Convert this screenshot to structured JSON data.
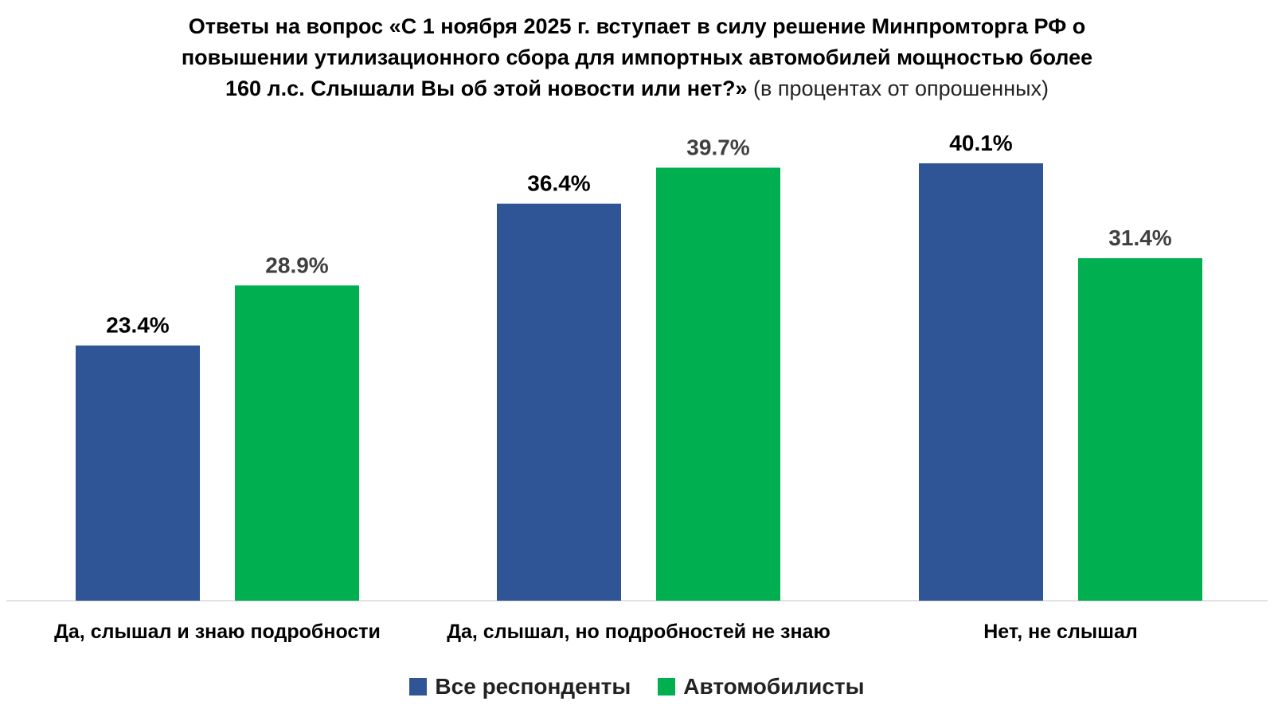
{
  "title": {
    "line1": "Ответы на вопрос «С 1 ноября 2025 г. вступает в силу решение Минпромторга РФ о",
    "line2": "повышении утилизационного сбора для импортных автомобилей мощностью более",
    "line3_bold": "160 л.с. Слышали Вы об этой новости или нет?»",
    "line3_normal": "(в процентах от опрошенных)"
  },
  "chart_data": {
    "type": "bar",
    "categories": [
      "Да, слышал и знаю подробности",
      "Да, слышал, но подробностей не знаю",
      "Нет, не слышал"
    ],
    "series": [
      {
        "name": "Все респонденты",
        "values": [
          23.4,
          36.4,
          40.1
        ],
        "labels": [
          "23.4%",
          "36.4%",
          "40.1%"
        ],
        "color": "#2F5597",
        "label_color": "#000000"
      },
      {
        "name": "Автомобилисты",
        "values": [
          28.9,
          39.7,
          31.4
        ],
        "labels": [
          "28.9%",
          "39.7%",
          "31.4%"
        ],
        "color": "#00B050",
        "label_color": "#404040"
      }
    ],
    "ylim": [
      0,
      40.1
    ],
    "grid": false,
    "legend_position": "bottom"
  }
}
